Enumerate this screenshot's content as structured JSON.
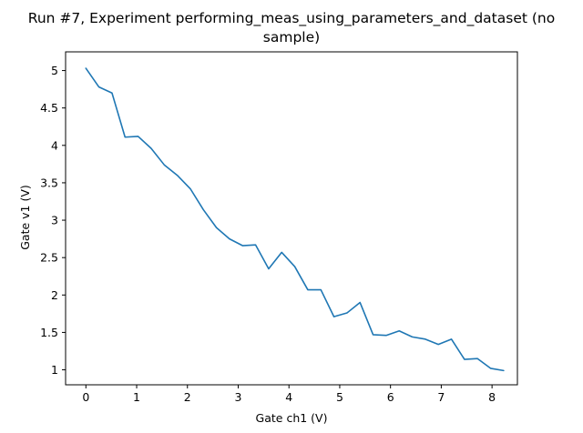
{
  "chart_data": {
    "type": "line",
    "title_lines": [
      "Run #7, Experiment performing_meas_using_parameters_and_dataset (no",
      "sample)"
    ],
    "xlabel": "Gate ch1 (V)",
    "ylabel": "Gate v1 (V)",
    "xlim": [
      -0.4,
      8.5
    ],
    "ylim": [
      0.8,
      5.25
    ],
    "xticks": [
      0,
      1,
      2,
      3,
      4,
      5,
      6,
      7,
      8
    ],
    "yticks": [
      1,
      1.5,
      2,
      2.5,
      3,
      3.5,
      4,
      4.5,
      5
    ],
    "grid": false,
    "line_color": "#1f77b4",
    "series": [
      {
        "x": [
          0,
          0.2571,
          0.5143,
          0.7714,
          1.0286,
          1.2857,
          1.5429,
          1.8,
          2.0571,
          2.3143,
          2.5714,
          2.8286,
          3.0857,
          3.3429,
          3.6,
          3.8571,
          4.1143,
          4.3714,
          4.6286,
          4.8857,
          5.1429,
          5.4,
          5.6571,
          5.9143,
          6.1714,
          6.4286,
          6.6857,
          6.9429,
          7.2,
          7.4571,
          7.7143,
          7.9714,
          8.2286
        ],
        "y": [
          5.03,
          4.78,
          4.7,
          4.11,
          4.12,
          3.96,
          3.74,
          3.6,
          3.42,
          3.14,
          2.9,
          2.75,
          2.66,
          2.67,
          2.35,
          2.57,
          2.38,
          2.07,
          2.07,
          1.71,
          1.76,
          1.9,
          1.47,
          1.46,
          1.52,
          1.44,
          1.41,
          1.34,
          1.41,
          1.14,
          1.15,
          1.02,
          0.99
        ]
      }
    ]
  }
}
